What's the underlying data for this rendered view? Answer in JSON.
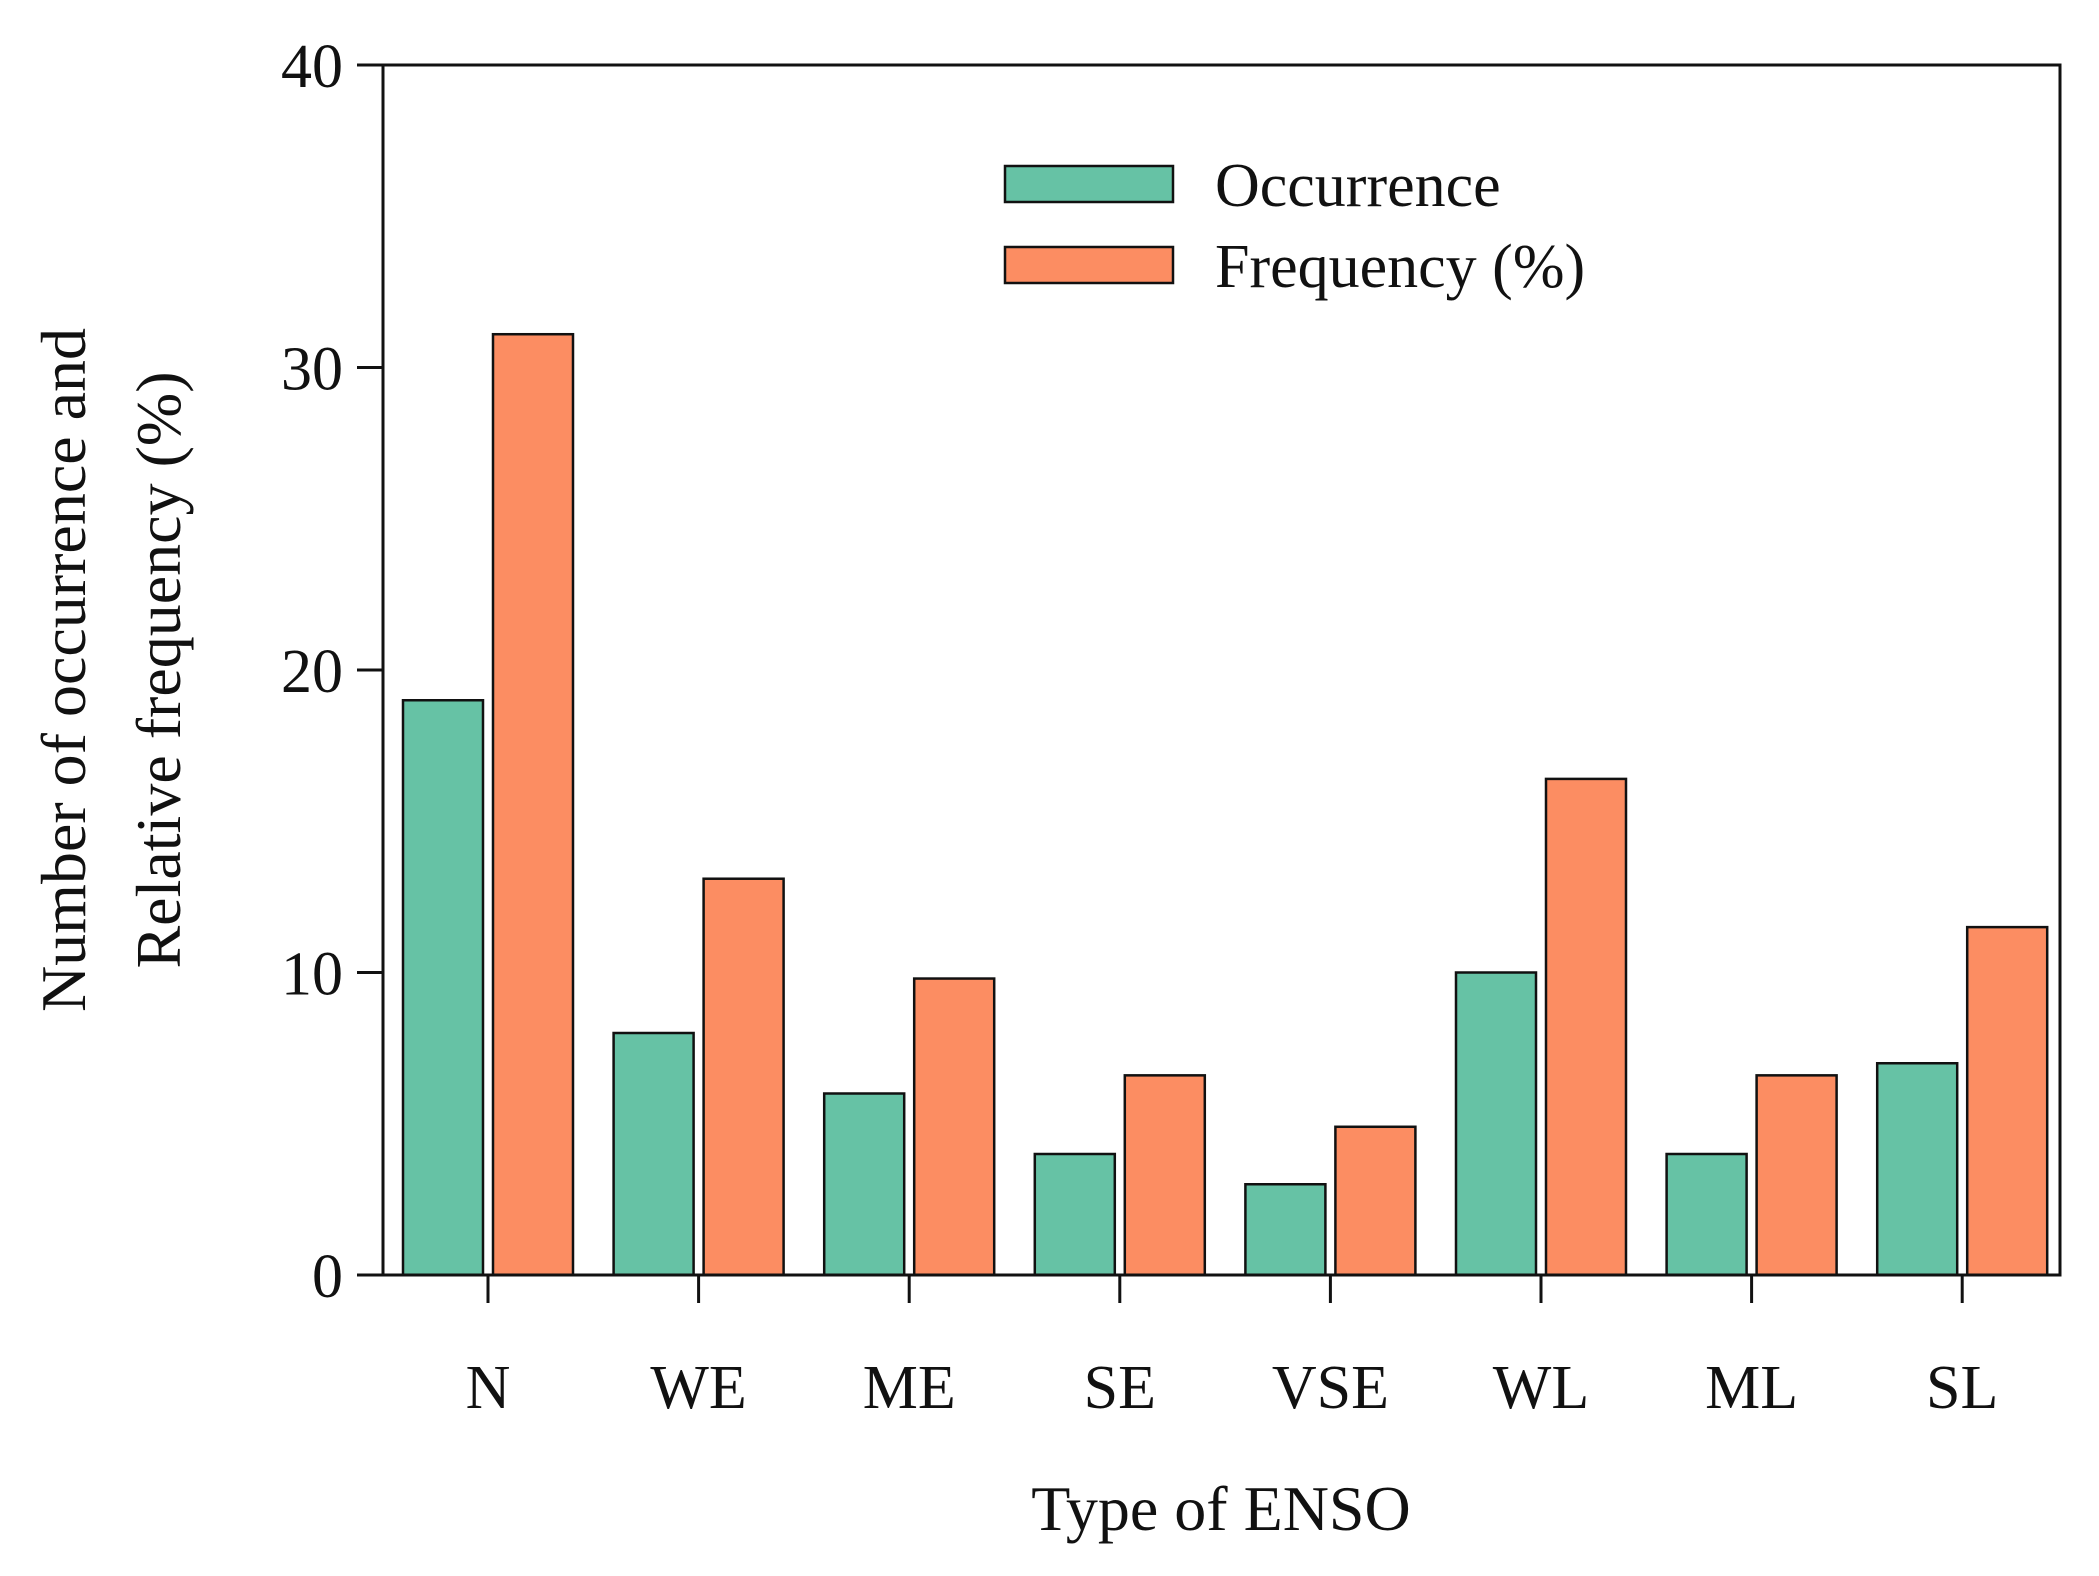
{
  "chart_data": {
    "type": "bar",
    "title": "",
    "xlabel": "Type of ENSO",
    "ylabel_lines": [
      "Number of occurrence and",
      "Relative frequency (%)"
    ],
    "categories": [
      "N",
      "WE",
      "ME",
      "SE",
      "VSE",
      "WL",
      "ML",
      "SL"
    ],
    "series": [
      {
        "name": "Occurrence",
        "values": [
          19,
          8,
          6,
          4,
          3,
          10,
          4,
          7
        ]
      },
      {
        "name": "Frequency (%)",
        "values": [
          31.1,
          13.1,
          9.8,
          6.6,
          4.9,
          16.4,
          6.6,
          11.5
        ]
      }
    ],
    "ylim": [
      0,
      40
    ],
    "yticks": [
      "0",
      "10",
      "20",
      "30",
      "40"
    ],
    "grid": false,
    "legend_position": "top-center"
  },
  "colors": {
    "occurrence": "#66c2a5",
    "frequency": "#fc8d62",
    "axis": "#111111"
  }
}
